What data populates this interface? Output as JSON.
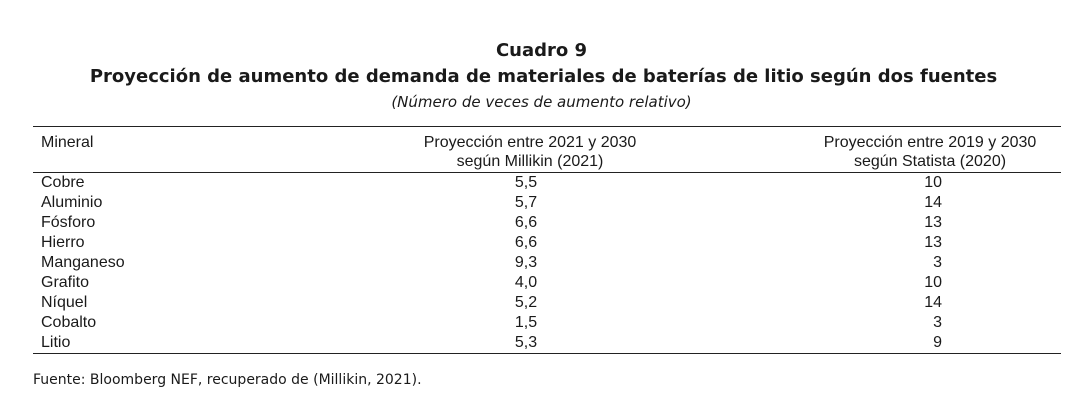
{
  "table": {
    "label": "Cuadro 9",
    "title": "Proyección de aumento de demanda de materiales de baterías de litio según dos fuentes",
    "subtitle": "(Número de veces de aumento relativo)",
    "headers": {
      "mineral": "Mineral",
      "col2_line1": "Proyección entre 2021 y 2030",
      "col2_line2": "según Millikin (2021)",
      "col3_line1": "Proyección entre 2019 y 2030",
      "col3_line2": "según Statista (2020)"
    },
    "rows": [
      {
        "mineral": "Cobre",
        "millikin": "5,5",
        "statista": "10"
      },
      {
        "mineral": "Aluminio",
        "millikin": "5,7",
        "statista": "14"
      },
      {
        "mineral": "Fósforo",
        "millikin": "6,6",
        "statista": "13"
      },
      {
        "mineral": "Hierro",
        "millikin": "6,6",
        "statista": "13"
      },
      {
        "mineral": "Manganeso",
        "millikin": "9,3",
        "statista": "3"
      },
      {
        "mineral": "Grafito",
        "millikin": "4,0",
        "statista": "10"
      },
      {
        "mineral": "Níquel",
        "millikin": "5,2",
        "statista": "14"
      },
      {
        "mineral": "Cobalto",
        "millikin": "1,5",
        "statista": "3"
      },
      {
        "mineral": "Litio",
        "millikin": "5,3",
        "statista": "9"
      }
    ],
    "source": "Fuente: Bloomberg NEF, recuperado de (Millikin, 2021)."
  }
}
